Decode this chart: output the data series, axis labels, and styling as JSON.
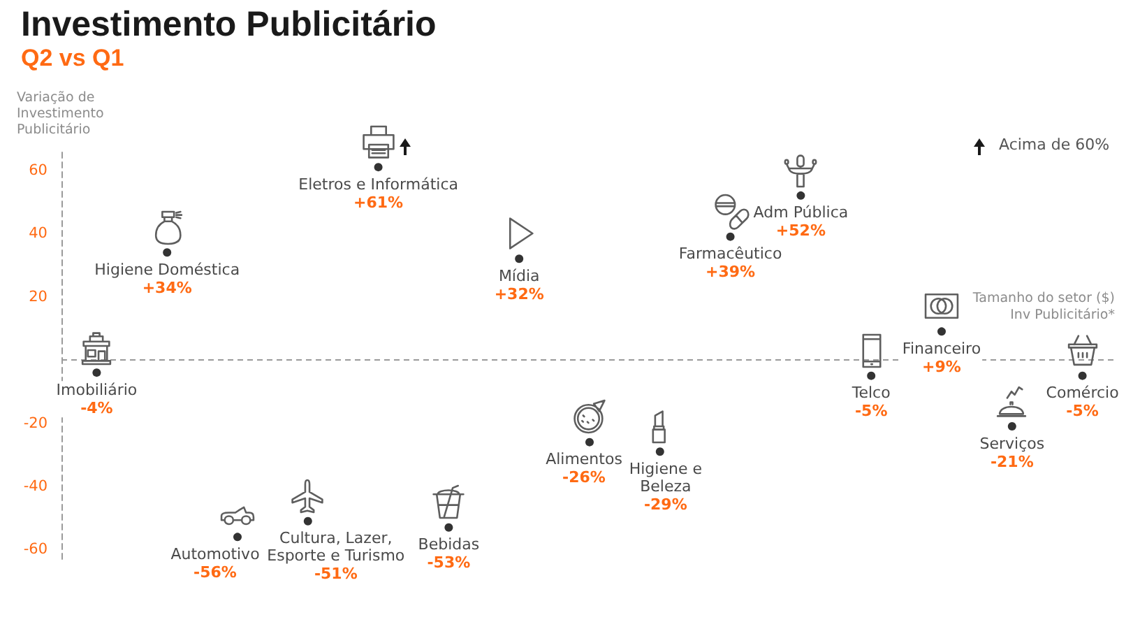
{
  "chart_data": {
    "type": "scatter",
    "title": "Investimento Publicitário",
    "subtitle": "Q2 vs Q1",
    "xlabel": "Tamanho do setor ($) Inv Publicitário*",
    "ylabel": "Variação de Investimento Publicitário",
    "categories": [
      "Imobiliário",
      "Higiene Doméstica",
      "Automotivo",
      "Cultura, Lazer, Esporte e Turismo",
      "Eletros e Informática",
      "Bebidas",
      "Mídia",
      "Alimentos",
      "Higiene e Beleza",
      "Farmacêutico",
      "Adm Pública",
      "Telco",
      "Financeiro",
      "Serviços",
      "Comércio"
    ],
    "values": [
      -4,
      34,
      -56,
      -51,
      61,
      -53,
      32,
      -26,
      -29,
      39,
      52,
      -5,
      9,
      -21,
      -5
    ],
    "value_labels": [
      "-4%",
      "+34%",
      "-56%",
      "-51%",
      "+61%",
      "-53%",
      "+32%",
      "-26%",
      "-29%",
      "+39%",
      "+52%",
      "-5%",
      "+9%",
      "-21%",
      "-5%"
    ],
    "color": "#333333",
    "marker": "circle",
    "ylim": [
      -63,
      67
    ],
    "yticks": [
      -60,
      -40,
      -20,
      20,
      40,
      60
    ],
    "tick_labels": "y",
    "grid": false,
    "ref_lines": [
      {
        "axis": "y",
        "value": 0,
        "line_style": "dashed",
        "color": "#9a9a9a"
      }
    ],
    "annotations": [
      "Acima de 60%"
    ]
  }
}
